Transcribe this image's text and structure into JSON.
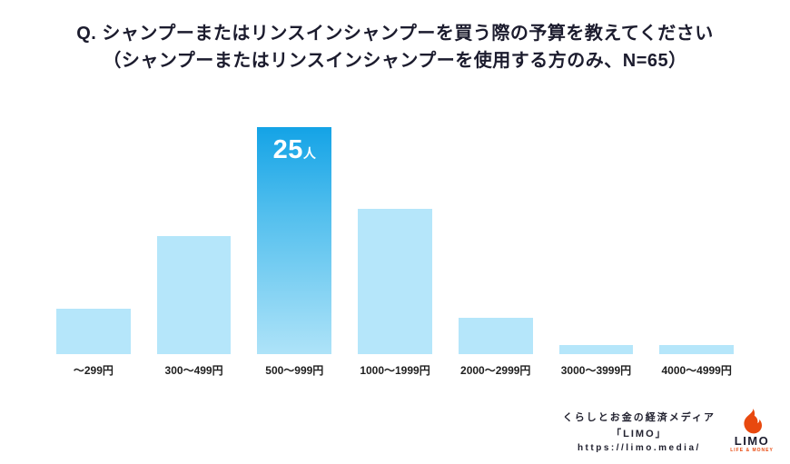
{
  "title": {
    "line1": "Q. シャンプーまたはリンスインシャンプーを買う際の予算を教えてください",
    "line2": "（シャンプーまたはリンスインシャンプーを使用する方のみ、N=65）"
  },
  "chart_data": {
    "type": "bar",
    "title": "シャンプーまたはリンスインシャンプーを買う際の予算",
    "categories": [
      "～299円",
      "300～499円",
      "500～999円",
      "1000～1999円",
      "2000～2999円",
      "3000～3999円",
      "4000～4999円"
    ],
    "values": [
      5,
      13,
      25,
      16,
      4,
      1,
      1
    ],
    "unit": "人",
    "n_total": "N=65",
    "highlight_index": 2,
    "highlight_value": "25",
    "highlight_unit": "人",
    "xlabel": "",
    "ylabel": "",
    "ylim": [
      0,
      25
    ],
    "grid": false,
    "legend": "none",
    "colors": {
      "bar": "#b5e6fa",
      "highlight_top": "#14a3e6",
      "highlight_mid": "#55c0ee",
      "highlight_bottom": "#aee3f8"
    }
  },
  "footer": {
    "tagline": "くらしとお金の経済メディア",
    "brand": "「LIMO」",
    "url": "https://limo.media/",
    "logo": {
      "text": "LIMO",
      "subtext": "LIFE & MONEY",
      "color": "#e8490f"
    }
  }
}
